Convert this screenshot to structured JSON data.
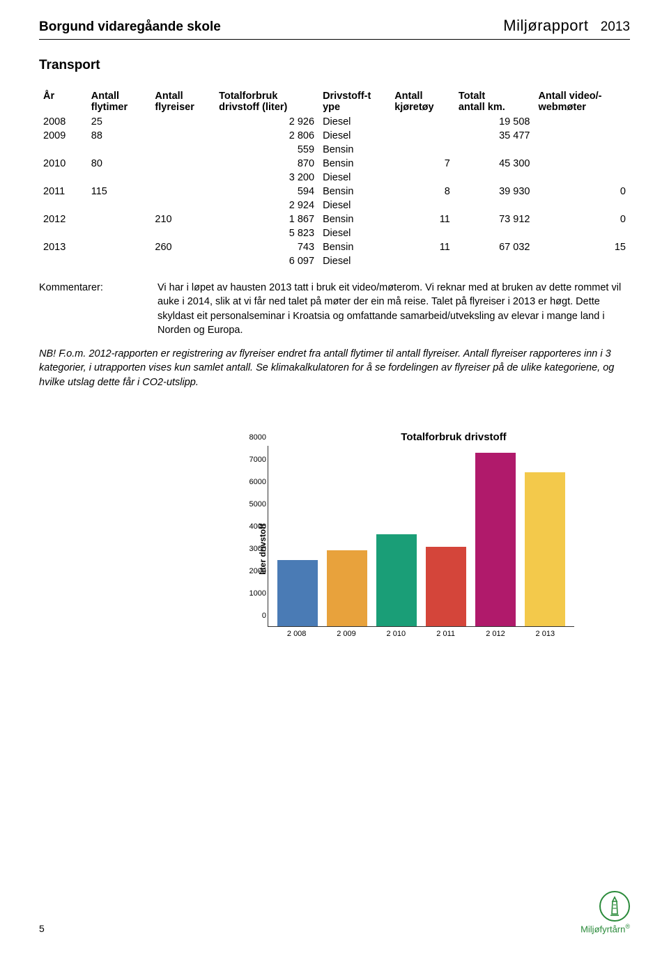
{
  "header": {
    "school": "Borgund vidaregåande skole",
    "report_word": "Miljørapport",
    "year": "2013"
  },
  "section_title": "Transport",
  "table": {
    "columns": {
      "year": "År",
      "flytimer_l1": "Antall",
      "flytimer_l2": "flytimer",
      "flyreiser_l1": "Antall",
      "flyreiser_l2": "flyreiser",
      "drivstoff_l1": "Totalforbruk",
      "drivstoff_l2": "drivstoff (liter)",
      "type_l1": "Drivstoff-t",
      "type_l2": "ype",
      "kjoretoy_l1": "Antall",
      "kjoretoy_l2": "kjøretøy",
      "km_l1": "Totalt",
      "km_l2": "antall km.",
      "web_l1": "Antall video/-",
      "web_l2": "webmøter"
    },
    "rows": [
      {
        "year": "2008",
        "flytimer": "25",
        "flyreiser": "",
        "liter": "2 926",
        "type": "Diesel",
        "kjoretoy": "",
        "km": "19 508",
        "web": ""
      },
      {
        "year": "2009",
        "flytimer": "88",
        "flyreiser": "",
        "liter": "2 806",
        "type": "Diesel",
        "kjoretoy": "",
        "km": "35 477",
        "web": ""
      },
      {
        "year": "",
        "flytimer": "",
        "flyreiser": "",
        "liter": "559",
        "type": "Bensin",
        "kjoretoy": "",
        "km": "",
        "web": ""
      },
      {
        "year": "2010",
        "flytimer": "80",
        "flyreiser": "",
        "liter": "870",
        "type": "Bensin",
        "kjoretoy": "7",
        "km": "45 300",
        "web": ""
      },
      {
        "year": "",
        "flytimer": "",
        "flyreiser": "",
        "liter": "3 200",
        "type": "Diesel",
        "kjoretoy": "",
        "km": "",
        "web": ""
      },
      {
        "year": "2011",
        "flytimer": "115",
        "flyreiser": "",
        "liter": "594",
        "type": "Bensin",
        "kjoretoy": "8",
        "km": "39 930",
        "web": "0"
      },
      {
        "year": "",
        "flytimer": "",
        "flyreiser": "",
        "liter": "2 924",
        "type": "Diesel",
        "kjoretoy": "",
        "km": "",
        "web": ""
      },
      {
        "year": "2012",
        "flytimer": "",
        "flyreiser": "210",
        "liter": "1 867",
        "type": "Bensin",
        "kjoretoy": "11",
        "km": "73 912",
        "web": "0"
      },
      {
        "year": "",
        "flytimer": "",
        "flyreiser": "",
        "liter": "5 823",
        "type": "Diesel",
        "kjoretoy": "",
        "km": "",
        "web": ""
      },
      {
        "year": "2013",
        "flytimer": "",
        "flyreiser": "260",
        "liter": "743",
        "type": "Bensin",
        "kjoretoy": "11",
        "km": "67 032",
        "web": "15"
      },
      {
        "year": "",
        "flytimer": "",
        "flyreiser": "",
        "liter": "6 097",
        "type": "Diesel",
        "kjoretoy": "",
        "km": "",
        "web": ""
      }
    ]
  },
  "kommentar": {
    "label": "Kommentarer:",
    "text": "Vi har i løpet av hausten 2013 tatt i bruk eit video/møterom. Vi reknar med at bruken av dette rommet vil auke i 2014, slik at vi får ned talet på møter der ein må reise. Talet på flyreiser i 2013 er høgt. Dette skyldast eit personalseminar i Kroatsia og omfattande samarbeid/utveksling av elevar i mange land i Norden og Europa."
  },
  "note": "NB! F.o.m. 2012-rapporten er registrering av flyreiser endret fra antall flytimer til antall flyreiser. Antall flyreiser rapporteres inn i 3 kategorier, i utrapporten vises kun samlet antall. Se klimakalkulatoren for å se fordelingen av flyreiser på de ulike kategoriene, og hvilke utslag dette får i CO2-utslipp.",
  "chart": {
    "title": "Totalforbruk drivstoff",
    "ylabel": "liter drivstoff",
    "ymax": 8000,
    "ytick_step": 1000,
    "yticks": [
      "0",
      "1000",
      "2000",
      "3000",
      "4000",
      "5000",
      "6000",
      "7000",
      "8000"
    ],
    "categories": [
      "2 008",
      "2 009",
      "2 010",
      "2 011",
      "2 012",
      "2 013"
    ],
    "values": [
      2926,
      3365,
      4070,
      3518,
      7690,
      6840
    ],
    "bar_colors": [
      "#4a7bb5",
      "#e8a23c",
      "#1a9e77",
      "#d4453a",
      "#b01a6b",
      "#f3c94b"
    ],
    "background": "#ffffff",
    "axis_color": "#333333",
    "label_fontsize": 11,
    "title_fontsize": 15
  },
  "footer": {
    "page": "5",
    "logo_text": "Miljøfyrtårn"
  }
}
